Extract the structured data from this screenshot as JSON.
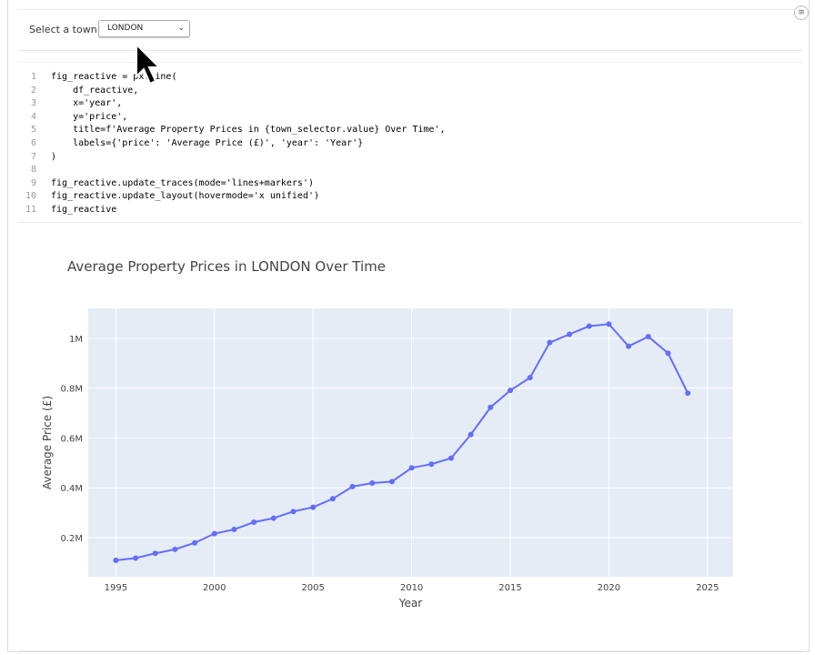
{
  "widget": {
    "label": "Select a town:",
    "selected": "LONDON",
    "menu_icon": "hamburger-icon"
  },
  "code": {
    "lines": [
      {
        "n": "1",
        "t": "fig_reactive = px.line("
      },
      {
        "n": "2",
        "t": "    df_reactive,"
      },
      {
        "n": "3",
        "t": "    x='year',"
      },
      {
        "n": "4",
        "t": "    y='price',"
      },
      {
        "n": "5",
        "t": "    title=f'Average Property Prices in {town_selector.value} Over Time',"
      },
      {
        "n": "6",
        "t": "    labels={'price': 'Average Price (£)', 'year': 'Year'}"
      },
      {
        "n": "7",
        "t": ")"
      },
      {
        "n": "8",
        "t": ""
      },
      {
        "n": "9",
        "t": "fig_reactive.update_traces(mode='lines+markers')"
      },
      {
        "n": "10",
        "t": "fig_reactive.update_layout(hovermode='x unified')"
      },
      {
        "n": "11",
        "t": "fig_reactive"
      }
    ]
  },
  "chart_data": {
    "type": "line",
    "title": "Average Property Prices in LONDON Over Time",
    "xlabel": "Year",
    "ylabel": "Average Price (£)",
    "x": [
      1995,
      1996,
      1997,
      1998,
      1999,
      2000,
      2001,
      2002,
      2003,
      2004,
      2005,
      2006,
      2007,
      2008,
      2009,
      2010,
      2011,
      2012,
      2013,
      2014,
      2015,
      2016,
      2017,
      2018,
      2019,
      2020,
      2021,
      2022,
      2023,
      2024
    ],
    "y": [
      109000,
      118000,
      137000,
      153000,
      179000,
      216000,
      233000,
      262000,
      278000,
      305000,
      322000,
      356000,
      405000,
      419000,
      425000,
      480000,
      495000,
      519000,
      614000,
      723000,
      791000,
      842000,
      983000,
      1016000,
      1049000,
      1057000,
      968000,
      1007000,
      940000,
      780000
    ],
    "xticks": [
      "1995",
      "2000",
      "2005",
      "2010",
      "2015",
      "2020",
      "2025"
    ],
    "yticks": [
      "0.2M",
      "0.4M",
      "0.6M",
      "0.8M",
      "1M"
    ],
    "xlim": [
      1993.6,
      2026.3
    ],
    "ylim": [
      43000,
      1120000
    ],
    "grid": true,
    "mode": "lines+markers",
    "colors": {
      "line": "#636efa",
      "plot_bg": "#e5ecf6"
    }
  }
}
